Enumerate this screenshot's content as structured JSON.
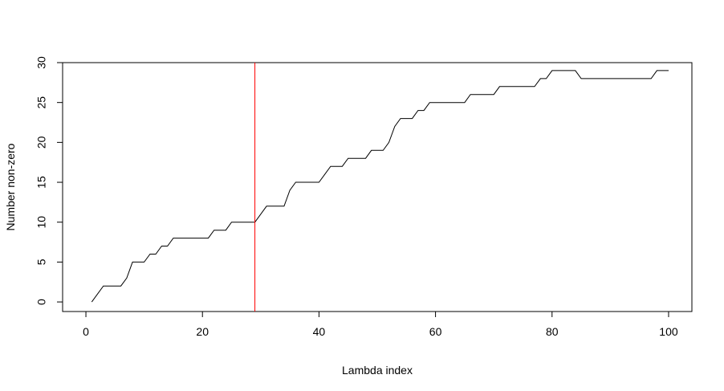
{
  "chart_data": {
    "type": "line",
    "title": "",
    "xlabel": "Lambda index",
    "ylabel": "Number non-zero",
    "xlim": [
      -4,
      104
    ],
    "ylim": [
      -1.2,
      30
    ],
    "xticks": [
      0,
      20,
      40,
      60,
      80,
      100
    ],
    "yticks": [
      0,
      5,
      10,
      15,
      20,
      25,
      30
    ],
    "grid": false,
    "legend": "none",
    "series": [
      {
        "color": "#000000",
        "x": [
          1,
          2,
          3,
          4,
          5,
          6,
          7,
          8,
          9,
          10,
          11,
          12,
          13,
          14,
          15,
          16,
          17,
          18,
          19,
          20,
          21,
          22,
          23,
          24,
          25,
          26,
          27,
          28,
          29,
          30,
          31,
          32,
          33,
          34,
          35,
          36,
          37,
          38,
          39,
          40,
          41,
          42,
          43,
          44,
          45,
          46,
          47,
          48,
          49,
          50,
          51,
          52,
          53,
          54,
          55,
          56,
          57,
          58,
          59,
          60,
          61,
          62,
          63,
          64,
          65,
          66,
          67,
          68,
          69,
          70,
          71,
          72,
          73,
          74,
          75,
          76,
          77,
          78,
          79,
          80,
          81,
          82,
          83,
          84,
          85,
          86,
          87,
          88,
          89,
          90,
          91,
          92,
          93,
          94,
          95,
          96,
          97,
          98,
          99,
          100
        ],
        "y": [
          0,
          1,
          2,
          2,
          2,
          2,
          3,
          5,
          5,
          5,
          6,
          6,
          7,
          7,
          8,
          8,
          8,
          8,
          8,
          8,
          8,
          9,
          9,
          9,
          10,
          10,
          10,
          10,
          10,
          11,
          12,
          12,
          12,
          12,
          14,
          15,
          15,
          15,
          15,
          15,
          16,
          17,
          17,
          17,
          18,
          18,
          18,
          18,
          19,
          19,
          19,
          20,
          22,
          23,
          23,
          23,
          24,
          24,
          25,
          25,
          25,
          25,
          25,
          25,
          25,
          26,
          26,
          26,
          26,
          26,
          27,
          27,
          27,
          27,
          27,
          27,
          27,
          28,
          28,
          29,
          29,
          29,
          29,
          29,
          28,
          28,
          28,
          28,
          28,
          28,
          28,
          28,
          28,
          28,
          28,
          28,
          28,
          29,
          29,
          29
        ]
      }
    ],
    "reference_line": {
      "orientation": "vertical",
      "x": 29,
      "color": "#ff0000"
    }
  }
}
